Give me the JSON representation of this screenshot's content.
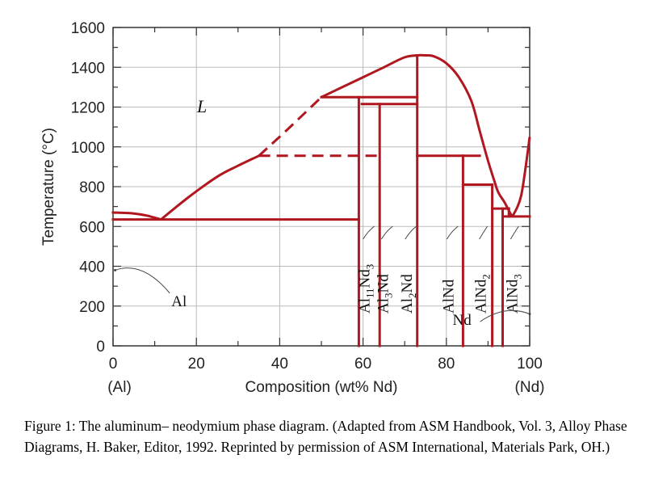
{
  "chart_data": {
    "type": "phase-diagram",
    "title": "",
    "xlabel": "Composition (wt% Nd)",
    "ylabel": "Temperature (°C)",
    "xlim": [
      0,
      100
    ],
    "ylim": [
      0,
      1600
    ],
    "x_ticks": [
      0,
      20,
      40,
      60,
      80,
      100
    ],
    "y_ticks": [
      0,
      200,
      400,
      600,
      800,
      1000,
      1200,
      1400,
      1600
    ],
    "x_end_labels": {
      "left": "(Al)",
      "right": "(Nd)"
    },
    "liquid_label": "L",
    "liquidus_solid": [
      [
        [
          0,
          670
        ],
        [
          5,
          665
        ],
        [
          8,
          655
        ],
        [
          11.5,
          635
        ]
      ],
      [
        [
          11.5,
          635
        ],
        [
          18,
          745
        ],
        [
          25,
          850
        ],
        [
          30,
          905
        ],
        [
          35,
          955
        ]
      ],
      [
        [
          50,
          1250
        ],
        [
          55,
          1300
        ],
        [
          60,
          1350
        ],
        [
          65,
          1400
        ],
        [
          70,
          1450
        ],
        [
          73,
          1460
        ],
        [
          75,
          1460
        ],
        [
          77,
          1455
        ],
        [
          80,
          1420
        ],
        [
          83,
          1350
        ],
        [
          86,
          1230
        ],
        [
          88,
          1080
        ],
        [
          90,
          930
        ],
        [
          91.5,
          830
        ],
        [
          92.5,
          770
        ],
        [
          94,
          720
        ],
        [
          95.5,
          660
        ],
        [
          96,
          655
        ]
      ],
      [
        [
          96,
          655
        ],
        [
          98,
          760
        ],
        [
          100,
          1050
        ]
      ]
    ],
    "liquidus_dashed": [
      [
        [
          35,
          955
        ],
        [
          42,
          1090
        ],
        [
          50,
          1250
        ]
      ]
    ],
    "dashed_lines": [
      [
        [
          35,
          955
        ],
        [
          64,
          955
        ]
      ]
    ],
    "solid_lines": [
      [
        [
          0,
          635
        ],
        [
          59,
          635
        ]
      ],
      [
        [
          0,
          670
        ],
        [
          0,
          670
        ]
      ],
      [
        [
          50,
          1250
        ],
        [
          73,
          1250
        ]
      ],
      [
        [
          59,
          0
        ],
        [
          59,
          1250
        ]
      ],
      [
        [
          64,
          0
        ],
        [
          64,
          1215
        ]
      ],
      [
        [
          59.7,
          1215
        ],
        [
          73,
          1215
        ]
      ],
      [
        [
          73,
          0
        ],
        [
          73,
          1460
        ]
      ],
      [
        [
          73,
          955
        ],
        [
          88,
          955
        ]
      ],
      [
        [
          84,
          0
        ],
        [
          84,
          955
        ]
      ],
      [
        [
          84,
          810
        ],
        [
          91,
          810
        ]
      ],
      [
        [
          91,
          0
        ],
        [
          91,
          810
        ]
      ],
      [
        [
          91,
          690
        ],
        [
          95,
          690
        ]
      ],
      [
        [
          93.5,
          0
        ],
        [
          93.5,
          690
        ]
      ],
      [
        [
          93.5,
          650
        ],
        [
          100,
          650
        ]
      ],
      [
        [
          95,
          650
        ],
        [
          95,
          690
        ]
      ]
    ],
    "phases": [
      {
        "name": "Al11Nd3",
        "main": "Al",
        "sub1": "11",
        "mid": "Nd",
        "sub2": "3",
        "x": 60.4
      },
      {
        "name": "Al3Nd",
        "main": "Al",
        "sub1": "3",
        "mid": "Nd",
        "sub2": "",
        "x": 64.8
      },
      {
        "name": "Al2Nd",
        "main": "Al",
        "sub1": "2",
        "mid": "Nd",
        "sub2": "",
        "x": 70.5
      },
      {
        "name": "AlNd",
        "main": "AlNd",
        "sub1": "",
        "mid": "",
        "sub2": "",
        "x": 80.5
      },
      {
        "name": "AlNd2",
        "main": "AlNd",
        "sub1": "2",
        "mid": "",
        "sub2": "",
        "x": 88.3
      },
      {
        "name": "AlNd3",
        "main": "AlNd",
        "sub1": "3",
        "mid": "",
        "sub2": "",
        "x": 95.8
      }
    ],
    "annotations": [
      {
        "text": "Al",
        "x": 14,
        "y": 200,
        "target": [
          0.5,
          380
        ]
      },
      {
        "text": "Nd",
        "x": 81.5,
        "y": 105,
        "target": [
          100,
          160
        ]
      }
    ],
    "colors": {
      "line": "#b0171f",
      "frame": "#333333",
      "grid": "#bbbbbb"
    }
  },
  "caption": "Figure 1: The aluminum– neodymium phase diagram. (Adapted from ASM Handbook, Vol. 3, Alloy Phase Diagrams, H. Baker, Editor, 1992. Reprinted by permission of ASM International, Materials Park, OH.)"
}
